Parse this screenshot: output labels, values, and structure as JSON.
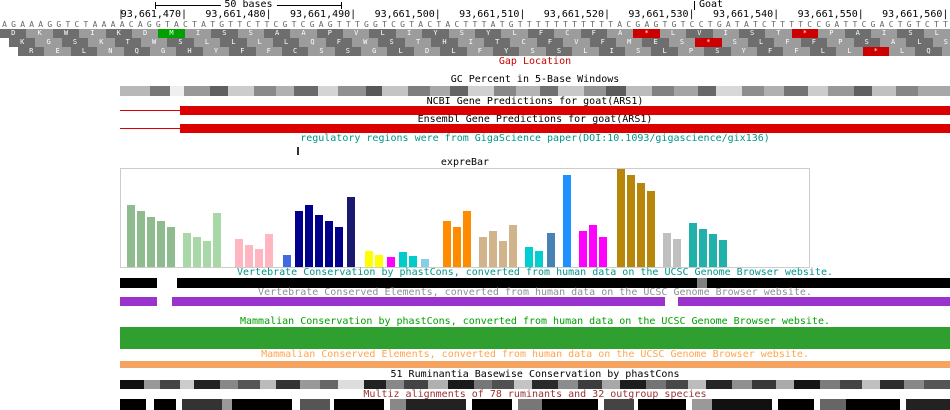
{
  "ruler": {
    "scale_label": "50 bases",
    "assembly_label": "Goat",
    "positions": [
      "93,661,470",
      "93,661,480",
      "93,661,490",
      "93,661,500",
      "93,661,510",
      "93,661,520",
      "93,661,530",
      "93,661,540",
      "93,661,550",
      "93,661,560"
    ]
  },
  "sequence": "AGAAAGGTCTAAAACAGGTACTATGTTCTTCGTCGAGTTTGGTCGTACTACTTTATGTTTTTTTTTTTACGAGTGTCCTGATATCTTTTCCGATTCGACTGTCTT",
  "colors": {
    "frame_dark": "#6e6e6e",
    "frame_light": "#9c9c9c",
    "start_codon": "#00a000",
    "stop_codon": "#cc0000",
    "sequence_text": "#666666"
  },
  "translation": {
    "rows": [
      {
        "offset": 0,
        "cells": [
          [
            "D"
          ],
          [
            "K"
          ],
          [
            "W"
          ],
          [
            "I"
          ],
          [
            "K"
          ],
          [
            "D"
          ],
          [
            "M",
            "start"
          ],
          [
            "I"
          ],
          [
            "S"
          ],
          [
            "S"
          ],
          [
            "A"
          ],
          [
            "A"
          ],
          [
            "P"
          ],
          [
            "V"
          ],
          [
            "L"
          ],
          [
            "I"
          ],
          [
            "Y"
          ],
          [
            "S"
          ],
          [
            "Y"
          ],
          [
            "L"
          ],
          [
            "F"
          ],
          [
            "C"
          ],
          [
            "F"
          ],
          [
            "A"
          ],
          [
            "*",
            "stop"
          ],
          [
            "L"
          ],
          [
            "V"
          ],
          [
            "I"
          ],
          [
            "S"
          ],
          [
            "T"
          ],
          [
            "*",
            "stop"
          ],
          [
            "P"
          ],
          [
            "A"
          ],
          [
            "I"
          ],
          [
            "S"
          ],
          [
            "L"
          ]
        ]
      },
      {
        "offset": 9,
        "cells": [
          [
            "K"
          ],
          [
            "G"
          ],
          [
            "S"
          ],
          [
            "K"
          ],
          [
            "T"
          ],
          [
            "W"
          ],
          [
            "S"
          ],
          [
            "L"
          ],
          [
            "L"
          ],
          [
            "L"
          ],
          [
            "L"
          ],
          [
            "Q"
          ],
          [
            "F"
          ],
          [
            "W"
          ],
          [
            "S"
          ],
          [
            "T"
          ],
          [
            "H"
          ],
          [
            "I"
          ],
          [
            "T"
          ],
          [
            "C"
          ],
          [
            "F"
          ],
          [
            "V"
          ],
          [
            "F"
          ],
          [
            "M"
          ],
          [
            "E"
          ],
          [
            "S"
          ],
          [
            "*",
            "stop"
          ],
          [
            "S"
          ],
          [
            "L"
          ],
          [
            "F"
          ],
          [
            "F"
          ],
          [
            "P"
          ],
          [
            "S"
          ],
          [
            "A"
          ],
          [
            "L"
          ],
          [
            "S"
          ]
        ]
      },
      {
        "offset": 18,
        "cells": [
          [
            "R"
          ],
          [
            "E"
          ],
          [
            "L"
          ],
          [
            "N"
          ],
          [
            "Q"
          ],
          [
            "G"
          ],
          [
            "H"
          ],
          [
            "Y"
          ],
          [
            "F"
          ],
          [
            "F"
          ],
          [
            "C"
          ],
          [
            "S"
          ],
          [
            "S"
          ],
          [
            "G"
          ],
          [
            "L"
          ],
          [
            "D"
          ],
          [
            "L"
          ],
          [
            "F"
          ],
          [
            "Y"
          ],
          [
            "S"
          ],
          [
            "S"
          ],
          [
            "L"
          ],
          [
            "I"
          ],
          [
            "S"
          ],
          [
            "L"
          ],
          [
            "P"
          ],
          [
            "S"
          ],
          [
            "Y"
          ],
          [
            "F"
          ],
          [
            "F"
          ],
          [
            "L"
          ],
          [
            "L"
          ],
          [
            "*",
            "stop"
          ],
          [
            "L"
          ],
          [
            "Q"
          ],
          [
            "S"
          ]
        ]
      }
    ]
  },
  "tracks": [
    {
      "id": "gap",
      "label": "Gap Location",
      "label_color": "#cc0000"
    },
    {
      "id": "gc",
      "label": "GC Percent in 5-Base Windows",
      "label_color": "#000000",
      "segments": [
        [
          0,
          30,
          "#b8b8b8"
        ],
        [
          30,
          20,
          "#787878"
        ],
        [
          50,
          14,
          "#efefef"
        ],
        [
          64,
          26,
          "#989898"
        ],
        [
          90,
          18,
          "#606060"
        ],
        [
          108,
          26,
          "#cccccc"
        ],
        [
          134,
          22,
          "#8a8a8a"
        ],
        [
          156,
          18,
          "#b0b0b0"
        ],
        [
          174,
          24,
          "#6a6a6a"
        ],
        [
          198,
          20,
          "#d4d4d4"
        ],
        [
          218,
          28,
          "#909090"
        ],
        [
          246,
          16,
          "#585858"
        ],
        [
          262,
          26,
          "#c4c4c4"
        ],
        [
          288,
          22,
          "#7e7e7e"
        ],
        [
          310,
          20,
          "#a8a8a8"
        ],
        [
          330,
          18,
          "#646464"
        ],
        [
          348,
          26,
          "#d0d0d0"
        ],
        [
          374,
          22,
          "#888888"
        ],
        [
          396,
          24,
          "#b4b4b4"
        ],
        [
          420,
          18,
          "#707070"
        ],
        [
          438,
          26,
          "#c8c8c8"
        ],
        [
          464,
          22,
          "#929292"
        ],
        [
          486,
          20,
          "#5c5c5c"
        ],
        [
          506,
          26,
          "#bcbcbc"
        ],
        [
          532,
          22,
          "#828282"
        ],
        [
          554,
          24,
          "#a4a4a4"
        ],
        [
          578,
          18,
          "#686868"
        ],
        [
          596,
          26,
          "#d8d8d8"
        ],
        [
          622,
          22,
          "#8e8e8e"
        ],
        [
          644,
          20,
          "#b0b0b0"
        ],
        [
          664,
          24,
          "#747474"
        ],
        [
          688,
          20,
          "#cccccc"
        ],
        [
          708,
          26,
          "#989898"
        ],
        [
          734,
          18,
          "#606060"
        ],
        [
          752,
          24,
          "#c0c0c0"
        ],
        [
          776,
          22,
          "#868686"
        ],
        [
          798,
          32,
          "#a8a8a8"
        ]
      ]
    },
    {
      "id": "ncbi",
      "label": "NCBI Gene Predictions for goat(ARS1)",
      "label_color": "#000000",
      "bar_color": "#dd0000"
    },
    {
      "id": "ensembl",
      "label": "Ensembl Gene Predictions for goat(ARS1)",
      "label_color": "#000000",
      "bar_color": "#dd0000"
    },
    {
      "id": "regulatory",
      "label": "regulatory regions were from GigaScience paper(DOI:10.1093/gigascience/gix136)",
      "label_color": "#009688"
    },
    {
      "id": "exprebar",
      "label": "expreBar",
      "label_color": "#000000"
    },
    {
      "id": "vert_cons",
      "label": "Vertebrate Conservation by phastCons, converted from human data on the UCSC Genome Browser website.",
      "label_color": "#009688",
      "segments": [
        [
          0,
          37,
          "#000000"
        ],
        [
          57,
          520,
          "#000000"
        ],
        [
          577,
          10,
          "#808080"
        ],
        [
          587,
          243,
          "#000000"
        ]
      ]
    },
    {
      "id": "vert_elem",
      "label": "Vertebrate Conserved Elements, converted from human data on the UCSC Genome Browser website.",
      "label_color": "#8f8f8f",
      "segments": [
        [
          0,
          37,
          "#9933cc"
        ],
        [
          52,
          493,
          "#9933cc"
        ],
        [
          558,
          272,
          "#9933cc"
        ]
      ]
    },
    {
      "id": "mamm_cons",
      "label": "Mammalian Conservation by phastCons, converted from human data on the UCSC Genome Browser website.",
      "label_color": "#00a000",
      "segments": [
        [
          0,
          830,
          "#2fa02f"
        ]
      ]
    },
    {
      "id": "mamm_elem",
      "label": "Mammalian Conserved Elements, converted from human data on the UCSC Genome Browser website.",
      "label_color": "#ffa54f",
      "segments": [
        [
          0,
          830,
          "#f4a460"
        ]
      ]
    },
    {
      "id": "ruminantia",
      "label": "51 Ruminantia Basewise Conservation by phastCons",
      "label_color": "#000000",
      "segments": [
        [
          0,
          24,
          "#111111"
        ],
        [
          24,
          16,
          "#999999"
        ],
        [
          40,
          20,
          "#444444"
        ],
        [
          60,
          14,
          "#cccccc"
        ],
        [
          74,
          26,
          "#222222"
        ],
        [
          100,
          18,
          "#888888"
        ],
        [
          118,
          22,
          "#555555"
        ],
        [
          140,
          16,
          "#bbbbbb"
        ],
        [
          156,
          24,
          "#333333"
        ],
        [
          180,
          20,
          "#999999"
        ],
        [
          200,
          18,
          "#666666"
        ],
        [
          218,
          26,
          "#dddddd"
        ],
        [
          244,
          22,
          "#222222"
        ],
        [
          266,
          18,
          "#888888"
        ],
        [
          284,
          24,
          "#444444"
        ],
        [
          308,
          20,
          "#b0b0b0"
        ],
        [
          328,
          26,
          "#1a1a1a"
        ],
        [
          354,
          18,
          "#777777"
        ],
        [
          372,
          22,
          "#505050"
        ],
        [
          394,
          18,
          "#c4c4c4"
        ],
        [
          412,
          26,
          "#2a2a2a"
        ],
        [
          438,
          20,
          "#8c8c8c"
        ],
        [
          458,
          24,
          "#3c3c3c"
        ],
        [
          482,
          18,
          "#a8a8a8"
        ],
        [
          500,
          26,
          "#1e1e1e"
        ],
        [
          526,
          20,
          "#747474"
        ],
        [
          546,
          22,
          "#484848"
        ],
        [
          568,
          18,
          "#bcbcbc"
        ],
        [
          586,
          26,
          "#262626"
        ],
        [
          612,
          20,
          "#909090"
        ],
        [
          632,
          24,
          "#383838"
        ],
        [
          656,
          18,
          "#ababab"
        ],
        [
          674,
          26,
          "#151515"
        ],
        [
          700,
          20,
          "#7c7c7c"
        ],
        [
          720,
          22,
          "#444444"
        ],
        [
          742,
          18,
          "#c0c0c0"
        ],
        [
          760,
          24,
          "#2e2e2e"
        ],
        [
          784,
          20,
          "#888888"
        ],
        [
          804,
          26,
          "#555555"
        ]
      ]
    },
    {
      "id": "multiz",
      "label": "Multiz alignments of 78 ruminants and 32 outgroup species",
      "label_color": "#993333",
      "segments": [
        [
          0,
          26,
          "#000000"
        ],
        [
          34,
          22,
          "#000000"
        ],
        [
          62,
          40,
          "#333333"
        ],
        [
          102,
          10,
          "#999999"
        ],
        [
          112,
          60,
          "#000000"
        ],
        [
          180,
          30,
          "#555555"
        ],
        [
          214,
          50,
          "#000000"
        ],
        [
          270,
          16,
          "#888888"
        ],
        [
          286,
          60,
          "#222222"
        ],
        [
          352,
          40,
          "#000000"
        ],
        [
          398,
          24,
          "#777777"
        ],
        [
          422,
          56,
          "#000000"
        ],
        [
          484,
          30,
          "#444444"
        ],
        [
          518,
          48,
          "#000000"
        ],
        [
          572,
          20,
          "#999999"
        ],
        [
          592,
          60,
          "#111111"
        ],
        [
          658,
          36,
          "#000000"
        ],
        [
          700,
          26,
          "#666666"
        ],
        [
          726,
          54,
          "#000000"
        ],
        [
          786,
          44,
          "#222222"
        ]
      ]
    }
  ],
  "chart_data": {
    "type": "bar",
    "title": "expreBar",
    "xlabel": "",
    "ylabel": "",
    "ylim": [
      0,
      100
    ],
    "note": "bars = [height 0-100, color, optional extra gap px before bar]",
    "bars": [
      [
        62,
        "#8fbc8f"
      ],
      [
        56,
        "#8fbc8f"
      ],
      [
        50,
        "#8fbc8f"
      ],
      [
        46,
        "#8fbc8f"
      ],
      [
        40,
        "#8fbc8f"
      ],
      [
        34,
        "#a8d8a8",
        8
      ],
      [
        30,
        "#a8d8a8"
      ],
      [
        26,
        "#a8d8a8"
      ],
      [
        54,
        "#a8d8a8"
      ],
      [
        28,
        "#ffb6c1",
        14
      ],
      [
        22,
        "#ffb6c1"
      ],
      [
        18,
        "#ffb6c1"
      ],
      [
        33,
        "#ffb6c1"
      ],
      [
        12,
        "#4169e1",
        10
      ],
      [
        56,
        "#00008b",
        4
      ],
      [
        62,
        "#00008b"
      ],
      [
        52,
        "#00008b"
      ],
      [
        46,
        "#00008b"
      ],
      [
        40,
        "#00008b"
      ],
      [
        70,
        "#191970",
        4
      ],
      [
        16,
        "#ffff00",
        10
      ],
      [
        12,
        "#ffff00"
      ],
      [
        10,
        "#ff00ff",
        4
      ],
      [
        15,
        "#00cccc",
        4
      ],
      [
        11,
        "#00cccc"
      ],
      [
        8,
        "#87ceeb",
        4
      ],
      [
        46,
        "#ff8c00",
        14
      ],
      [
        40,
        "#ff8c00"
      ],
      [
        56,
        "#ff8c00"
      ],
      [
        30,
        "#d2b48c",
        8
      ],
      [
        36,
        "#d2b48c"
      ],
      [
        26,
        "#d2b48c"
      ],
      [
        42,
        "#d2b48c"
      ],
      [
        20,
        "#00ced1",
        8
      ],
      [
        16,
        "#00ced1"
      ],
      [
        34,
        "#4682b4",
        4
      ],
      [
        92,
        "#1e90ff",
        8
      ],
      [
        36,
        "#ff00ff",
        8
      ],
      [
        42,
        "#ff00ff"
      ],
      [
        30,
        "#ff00ff"
      ],
      [
        98,
        "#b8860b",
        10
      ],
      [
        92,
        "#b8860b"
      ],
      [
        84,
        "#b8860b"
      ],
      [
        76,
        "#b8860b"
      ],
      [
        34,
        "#c0c0c0",
        8
      ],
      [
        28,
        "#c0c0c0"
      ],
      [
        44,
        "#20b2aa",
        8
      ],
      [
        38,
        "#20b2aa"
      ],
      [
        33,
        "#20b2aa"
      ],
      [
        27,
        "#20b2aa"
      ]
    ]
  }
}
